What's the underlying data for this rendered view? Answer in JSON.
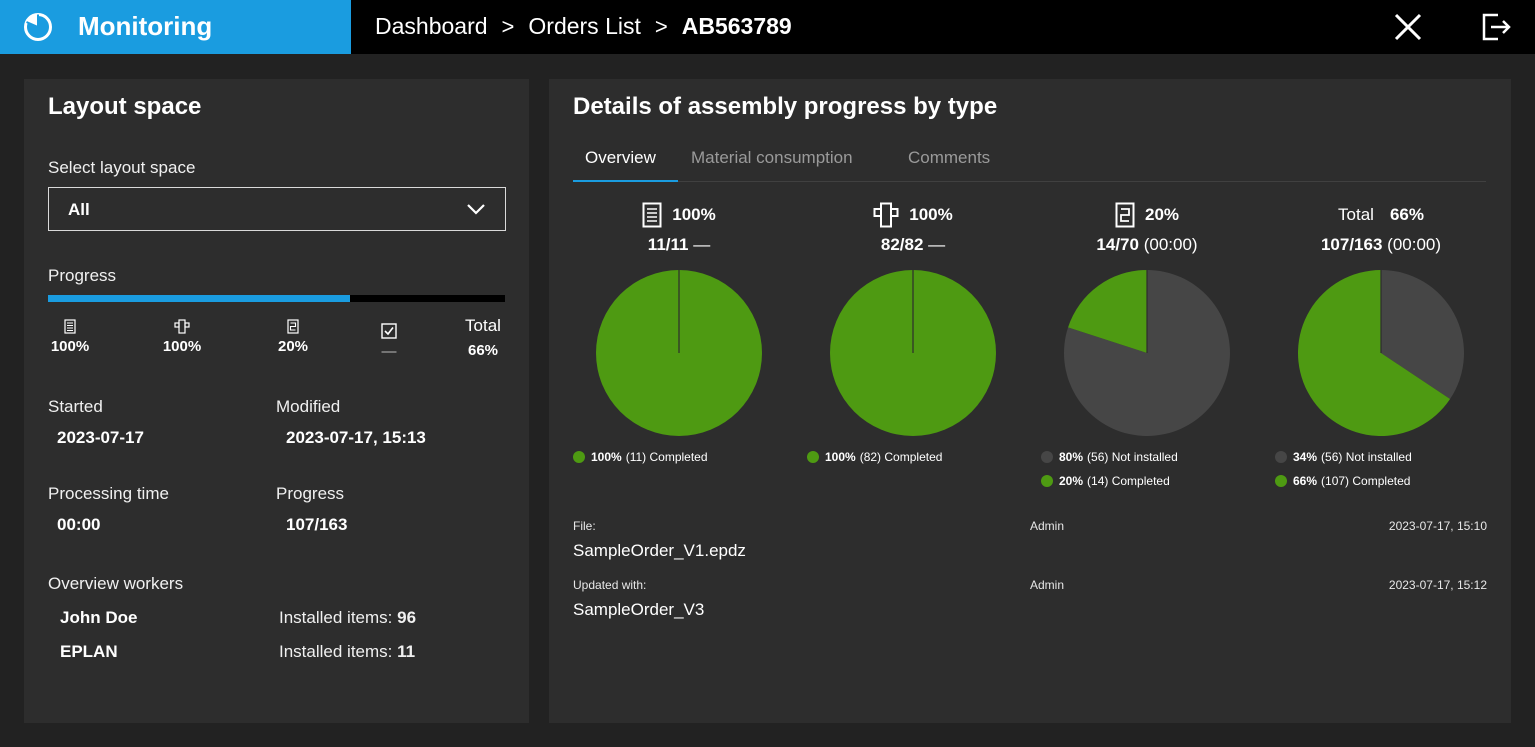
{
  "header": {
    "app_title": "Monitoring",
    "breadcrumb": [
      "Dashboard",
      "Orders List",
      "AB563789"
    ],
    "separator": ">",
    "accent": "#1a9ce0",
    "icons": [
      "close-icon",
      "logout-icon"
    ]
  },
  "layout_space": {
    "title": "Layout space",
    "select_label": "Select layout space",
    "selected": "All",
    "progress_label": "Progress",
    "progress_fraction": 0.66,
    "types": [
      {
        "icon": "document-icon",
        "value": "100%"
      },
      {
        "icon": "component-icon",
        "value": "100%"
      },
      {
        "icon": "wire-icon",
        "value": "20%"
      },
      {
        "icon": "checkbox-icon",
        "value": "—"
      },
      {
        "label": "Total",
        "value": "66%"
      }
    ],
    "started_label": "Started",
    "started_value": "2023-07-17",
    "modified_label": "Modified",
    "modified_value": "2023-07-17, 15:13",
    "processing_label": "Processing time",
    "processing_value": "00:00",
    "progress2_label": "Progress",
    "progress2_value": "107/163",
    "workers_label": "Overview workers",
    "workers": [
      {
        "name": "John Doe",
        "items_label": "Installed items:",
        "items": "96"
      },
      {
        "name": "EPLAN",
        "items_label": "Installed items:",
        "items": "11"
      }
    ]
  },
  "details": {
    "title": "Details of assembly progress by type",
    "tabs": [
      "Overview",
      "Material consumption",
      "Comments"
    ],
    "active_tab": 0,
    "colors": {
      "completed": "#4e9a12",
      "not_installed": "#464646"
    },
    "pies": [
      {
        "icon": "document-icon",
        "header": "100%",
        "count": "11/11",
        "time": "—",
        "legend": [
          {
            "pct": "100%",
            "count": "(11)",
            "label": "Completed",
            "status": "completed"
          }
        ]
      },
      {
        "icon": "component-icon",
        "header": "100%",
        "count": "82/82",
        "time": "—",
        "legend": [
          {
            "pct": "100%",
            "count": "(82)",
            "label": "Completed",
            "status": "completed"
          }
        ]
      },
      {
        "icon": "wire-icon",
        "header": "20%",
        "count": "14/70",
        "time": "(00:00)",
        "legend": [
          {
            "pct": "80%",
            "count": "(56)",
            "label": "Not installed",
            "status": "not_installed"
          },
          {
            "pct": "20%",
            "count": "(14)",
            "label": "Completed",
            "status": "completed"
          }
        ]
      },
      {
        "header_label": "Total",
        "header": "66%",
        "count": "107/163",
        "time": "(00:00)",
        "legend": [
          {
            "pct": "34%",
            "count": "(56)",
            "label": "Not installed",
            "status": "not_installed"
          },
          {
            "pct": "66%",
            "count": "(107)",
            "label": "Completed",
            "status": "completed"
          }
        ]
      }
    ],
    "file": {
      "label": "File:",
      "name": "SampleOrder_V1.epdz",
      "user": "Admin",
      "date": "2023-07-17, 15:10"
    },
    "updated": {
      "label": "Updated with:",
      "name": "SampleOrder_V3",
      "user": "Admin",
      "date": "2023-07-17, 15:12"
    }
  },
  "chart_data": [
    {
      "type": "pie",
      "labels": [
        "Completed"
      ],
      "values": [
        11
      ],
      "colors": [
        "#4e9a12"
      ]
    },
    {
      "type": "pie",
      "labels": [
        "Completed"
      ],
      "values": [
        82
      ],
      "colors": [
        "#4e9a12"
      ]
    },
    {
      "type": "pie",
      "labels": [
        "Not installed",
        "Completed"
      ],
      "values": [
        56,
        14
      ],
      "colors": [
        "#464646",
        "#4e9a12"
      ]
    },
    {
      "type": "pie",
      "labels": [
        "Not installed",
        "Completed"
      ],
      "values": [
        56,
        107
      ],
      "colors": [
        "#464646",
        "#4e9a12"
      ]
    }
  ]
}
